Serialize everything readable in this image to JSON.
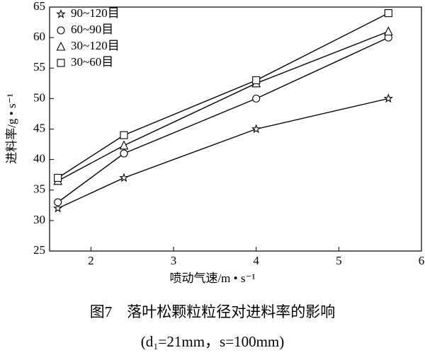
{
  "chart_data": {
    "type": "line",
    "caption": "图7　落叶松颗粒粒径对进料率的影响",
    "subcaption": "(d₁=21mm，s=100mm)",
    "xlabel": "喷动气速/m • s⁻¹",
    "ylabel": "进料率/g • s⁻¹",
    "x": [
      1.6,
      2.4,
      4.0,
      5.6
    ],
    "series": [
      {
        "name": "90~120目",
        "color": "#000000",
        "marker": "star",
        "values": [
          32,
          37,
          45,
          50
        ]
      },
      {
        "name": "60~90目",
        "color": "#000000",
        "marker": "circle",
        "values": [
          33,
          41,
          50,
          60
        ]
      },
      {
        "name": "30~120目",
        "color": "#000000",
        "marker": "triangle",
        "values": [
          36.5,
          42.3,
          52.5,
          61
        ]
      },
      {
        "name": "30~60目",
        "color": "#000000",
        "marker": "square",
        "values": [
          37,
          44,
          53,
          64
        ]
      }
    ],
    "xlim": [
      1.5,
      6
    ],
    "xticks": [
      2,
      3,
      4,
      5,
      6
    ],
    "ylim": [
      25,
      65
    ],
    "yticks": [
      25,
      30,
      35,
      40,
      45,
      50,
      55,
      60,
      65
    ],
    "legend": "upper left"
  }
}
